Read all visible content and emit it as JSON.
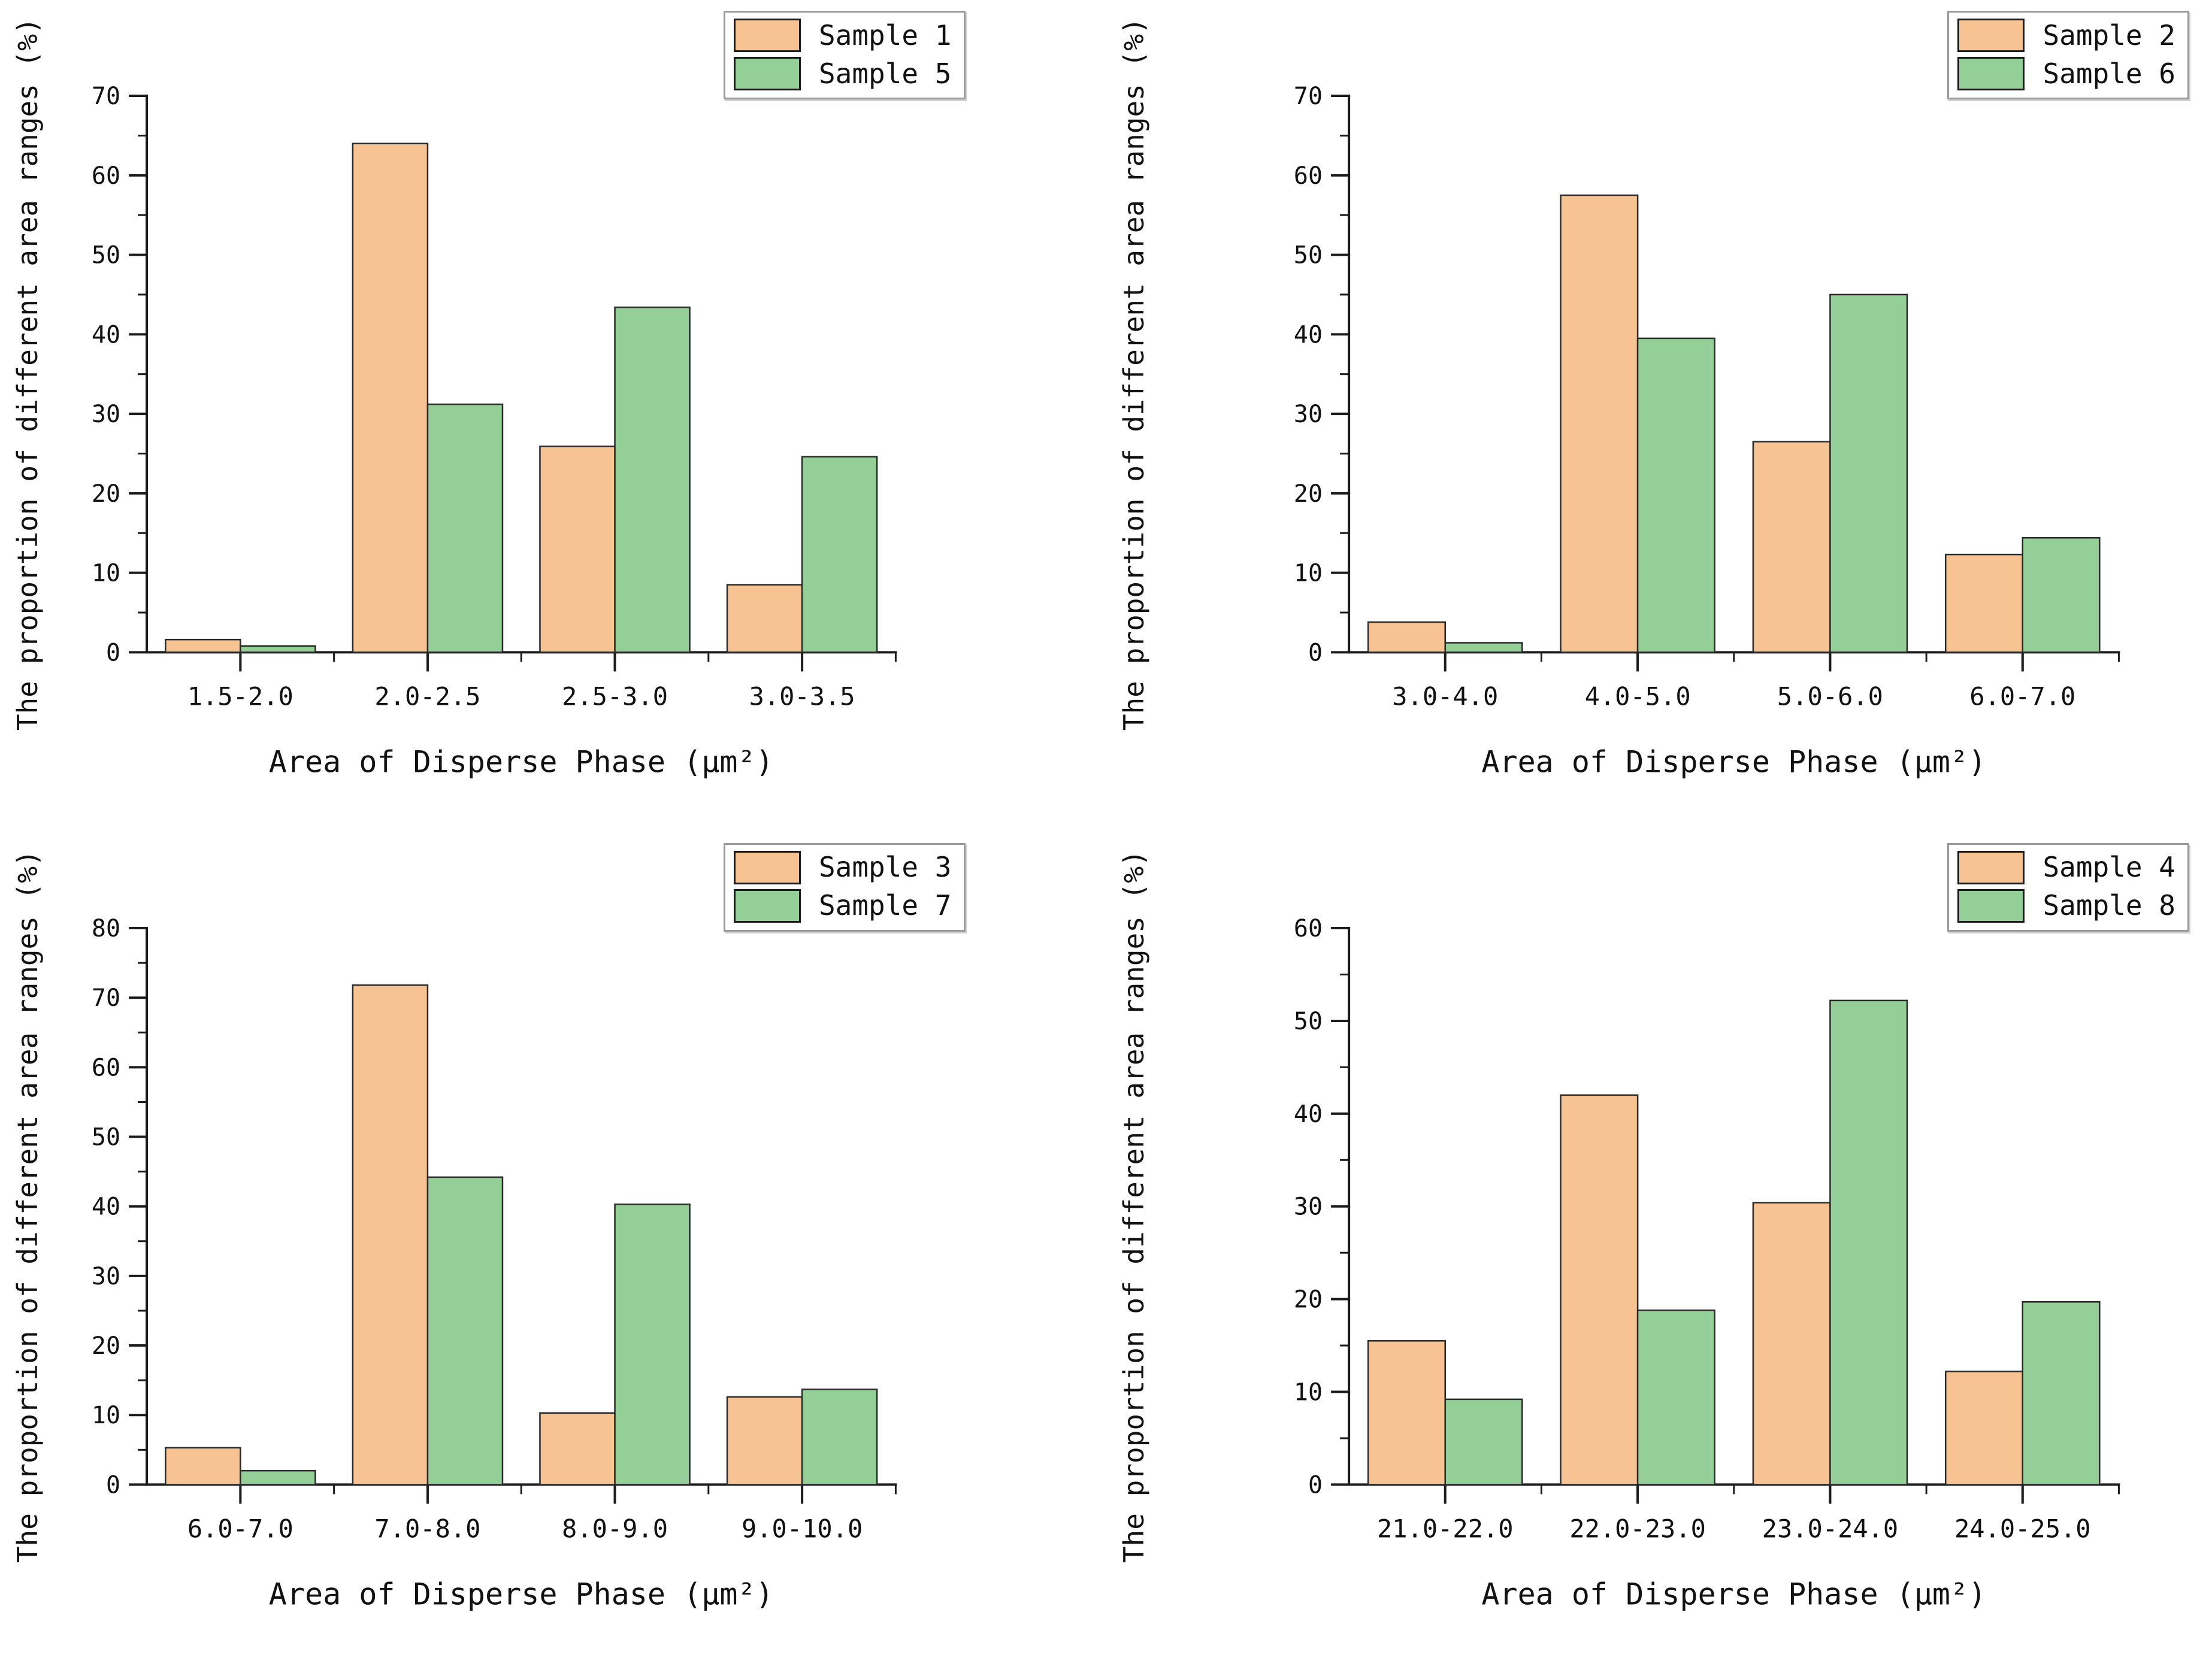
{
  "colors": {
    "series_a_fill": "#F8C392",
    "series_b_fill": "#93CF97",
    "bar_edge": "#2a2a2a",
    "axis": "#1c1c1c",
    "text": "#111111",
    "legend_border": "#9b9b9b"
  },
  "chart_data": [
    {
      "type": "bar",
      "title": "",
      "xlabel": "Area of Disperse Phase (μm²)",
      "ylabel": "The proportion of different area ranges (%)",
      "ylim": [
        0,
        70
      ],
      "ytick_step": 10,
      "ytick_minor_step": 5,
      "grid": false,
      "legend_position": "top-right",
      "categories": [
        "1.5-2.0",
        "2.0-2.5",
        "2.5-3.0",
        "3.0-3.5"
      ],
      "series": [
        {
          "name": "Sample 1",
          "values": [
            1.6,
            64.0,
            25.9,
            8.5
          ]
        },
        {
          "name": "Sample 5",
          "values": [
            0.8,
            31.2,
            43.4,
            24.6
          ]
        }
      ]
    },
    {
      "type": "bar",
      "title": "",
      "xlabel": "Area of Disperse Phase (μm²)",
      "ylabel": "The proportion of different area ranges (%)",
      "ylim": [
        0,
        70
      ],
      "ytick_step": 10,
      "ytick_minor_step": 5,
      "grid": false,
      "legend_position": "top-right",
      "categories": [
        "3.0-4.0",
        "4.0-5.0",
        "5.0-6.0",
        "6.0-7.0"
      ],
      "series": [
        {
          "name": "Sample 2",
          "values": [
            3.8,
            57.5,
            26.5,
            12.3
          ]
        },
        {
          "name": "Sample 6",
          "values": [
            1.2,
            39.5,
            45.0,
            14.4
          ]
        }
      ]
    },
    {
      "type": "bar",
      "title": "",
      "xlabel": "Area of Disperse Phase (μm²)",
      "ylabel": "The proportion of different area ranges (%)",
      "ylim": [
        0,
        80
      ],
      "ytick_step": 10,
      "ytick_minor_step": 5,
      "grid": false,
      "legend_position": "top-right",
      "categories": [
        "6.0-7.0",
        "7.0-8.0",
        "8.0-9.0",
        "9.0-10.0"
      ],
      "series": [
        {
          "name": "Sample 3",
          "values": [
            5.3,
            71.8,
            10.3,
            12.6
          ]
        },
        {
          "name": "Sample 7",
          "values": [
            2.0,
            44.2,
            40.3,
            13.7
          ]
        }
      ]
    },
    {
      "type": "bar",
      "title": "",
      "xlabel": "Area of Disperse Phase (μm²)",
      "ylabel": "The proportion of different area ranges (%)",
      "ylim": [
        0,
        60
      ],
      "ytick_step": 10,
      "ytick_minor_step": 5,
      "grid": false,
      "legend_position": "top-right",
      "categories": [
        "21.0-22.0",
        "22.0-23.0",
        "23.0-24.0",
        "24.0-25.0"
      ],
      "series": [
        {
          "name": "Sample 4",
          "values": [
            15.5,
            42.0,
            30.4,
            12.2
          ]
        },
        {
          "name": "Sample 8",
          "values": [
            9.2,
            18.8,
            52.2,
            19.7
          ]
        }
      ]
    }
  ]
}
